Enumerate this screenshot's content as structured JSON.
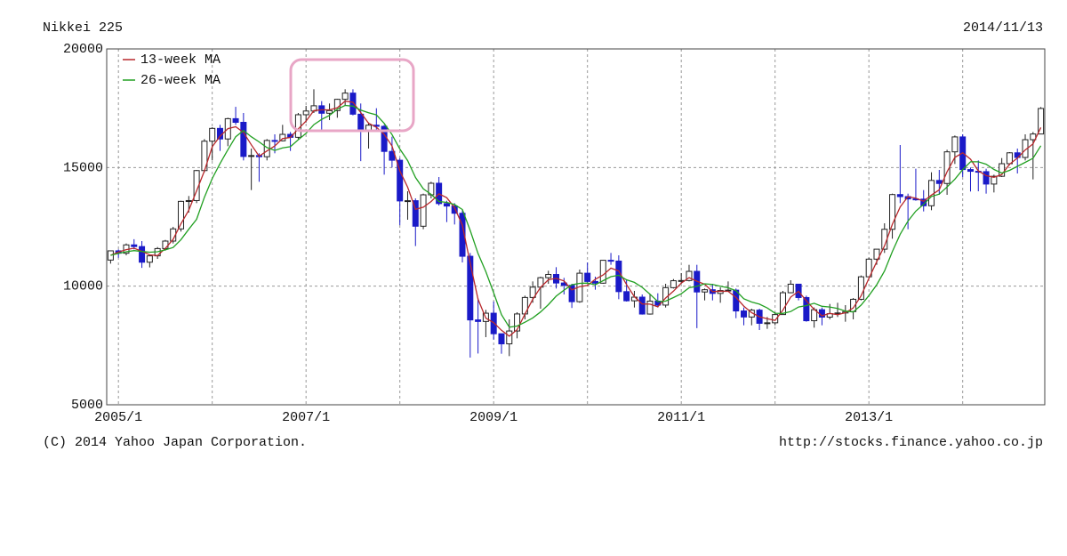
{
  "chart_data": {
    "type": "candlestick",
    "title": "Nikkei 225",
    "date": "2014/11/13",
    "copyright": "(C) 2014 Yahoo Japan Corporation.",
    "source": "http://stocks.finance.yahoo.co.jp",
    "up_color": "#ffffff",
    "down_color": "#1a1ac8",
    "ylim": [
      5000,
      20000
    ],
    "yticks": [
      5000,
      10000,
      15000,
      20000
    ],
    "grid": true,
    "legend": "top-left",
    "categories": [
      null,
      "2005/1",
      null,
      null,
      null,
      null,
      null,
      null,
      null,
      null,
      null,
      null,
      null,
      null,
      null,
      null,
      null,
      null,
      null,
      null,
      null,
      null,
      null,
      null,
      null,
      "2007/1",
      null,
      null,
      null,
      null,
      null,
      null,
      null,
      null,
      null,
      null,
      null,
      null,
      null,
      null,
      null,
      null,
      null,
      null,
      null,
      null,
      null,
      null,
      null,
      "2009/1",
      null,
      null,
      null,
      null,
      null,
      null,
      null,
      null,
      null,
      null,
      null,
      null,
      null,
      null,
      null,
      null,
      null,
      null,
      null,
      null,
      null,
      null,
      null,
      "2011/1",
      null,
      null,
      null,
      null,
      null,
      null,
      null,
      null,
      null,
      null,
      null,
      null,
      null,
      null,
      null,
      null,
      null,
      null,
      null,
      null,
      null,
      null,
      null,
      "2013/1",
      null,
      null,
      null,
      null,
      null,
      null,
      null,
      null,
      null,
      null,
      null,
      null,
      null,
      null,
      null,
      null,
      null,
      null,
      null,
      null,
      null,
      null
    ],
    "ohlc": [
      [
        11100,
        11500,
        10950,
        11489
      ],
      [
        11489,
        11550,
        11200,
        11388
      ],
      [
        11388,
        11800,
        11300,
        11740
      ],
      [
        11740,
        11980,
        11550,
        11669
      ],
      [
        11669,
        11900,
        10770,
        11009
      ],
      [
        11009,
        11300,
        10790,
        11277
      ],
      [
        11277,
        11650,
        11150,
        11584
      ],
      [
        11584,
        11950,
        11500,
        11900
      ],
      [
        11900,
        12500,
        11800,
        12414
      ],
      [
        12414,
        13600,
        12300,
        13574
      ],
      [
        13574,
        13800,
        13100,
        13607
      ],
      [
        13607,
        14900,
        13500,
        14872
      ],
      [
        14872,
        16200,
        14800,
        16111
      ],
      [
        16111,
        16700,
        15300,
        16650
      ],
      [
        16650,
        16800,
        15700,
        16205
      ],
      [
        16205,
        17100,
        15900,
        17060
      ],
      [
        17060,
        17560,
        16800,
        16906
      ],
      [
        16906,
        17300,
        15300,
        15467
      ],
      [
        15467,
        15800,
        14050,
        15505
      ],
      [
        15505,
        15600,
        14400,
        15457
      ],
      [
        15457,
        16200,
        15300,
        16141
      ],
      [
        16141,
        16400,
        15600,
        16127
      ],
      [
        16127,
        16800,
        16100,
        16399
      ],
      [
        16399,
        16500,
        15700,
        16274
      ],
      [
        16274,
        17300,
        16200,
        17226
      ],
      [
        17226,
        17600,
        16900,
        17383
      ],
      [
        17383,
        18300,
        17300,
        17604
      ],
      [
        17604,
        17800,
        16600,
        17288
      ],
      [
        17288,
        17700,
        17000,
        17400
      ],
      [
        17400,
        17900,
        17100,
        17876
      ],
      [
        17876,
        18300,
        17600,
        18138
      ],
      [
        18138,
        18300,
        17200,
        17249
      ],
      [
        17249,
        17700,
        15270,
        16569
      ],
      [
        16569,
        16900,
        15800,
        16786
      ],
      [
        16786,
        17500,
        16500,
        16737
      ],
      [
        16737,
        16800,
        14700,
        15680
      ],
      [
        15680,
        16300,
        15000,
        15308
      ],
      [
        15308,
        15400,
        12570,
        13592
      ],
      [
        13592,
        14000,
        12800,
        13603
      ],
      [
        13603,
        13700,
        11690,
        12526
      ],
      [
        12526,
        13900,
        12400,
        13850
      ],
      [
        13850,
        14400,
        13700,
        14338
      ],
      [
        14338,
        14600,
        13400,
        13481
      ],
      [
        13481,
        13600,
        12700,
        13377
      ],
      [
        13377,
        13500,
        12600,
        13073
      ],
      [
        13073,
        13200,
        11000,
        11260
      ],
      [
        11260,
        11400,
        6990,
        8577
      ],
      [
        8577,
        9500,
        7160,
        8512
      ],
      [
        8512,
        9000,
        7850,
        8860
      ],
      [
        8860,
        9350,
        7750,
        7994
      ],
      [
        7994,
        8000,
        7150,
        7568
      ],
      [
        7568,
        8600,
        7050,
        8110
      ],
      [
        8110,
        8900,
        7800,
        8828
      ],
      [
        8828,
        9600,
        8600,
        9523
      ],
      [
        9523,
        10200,
        9300,
        9958
      ],
      [
        9958,
        10400,
        9050,
        10357
      ],
      [
        10357,
        10650,
        10100,
        10493
      ],
      [
        10493,
        10800,
        9900,
        10133
      ],
      [
        10133,
        10350,
        9650,
        10034
      ],
      [
        10034,
        10100,
        9080,
        9345
      ],
      [
        9345,
        10700,
        9300,
        10546
      ],
      [
        10546,
        11000,
        10100,
        10198
      ],
      [
        10198,
        10400,
        9850,
        10126
      ],
      [
        10126,
        11100,
        10100,
        11090
      ],
      [
        11090,
        11400,
        10900,
        11057
      ],
      [
        11057,
        11300,
        9450,
        9769
      ],
      [
        9769,
        10250,
        9350,
        9383
      ],
      [
        9383,
        9800,
        9100,
        9537
      ],
      [
        9537,
        9650,
        8800,
        8824
      ],
      [
        8824,
        9650,
        8800,
        9369
      ],
      [
        9369,
        9700,
        9100,
        9202
      ],
      [
        9202,
        10100,
        9100,
        9937
      ],
      [
        9937,
        10300,
        9900,
        10229
      ],
      [
        10229,
        10550,
        10100,
        10237
      ],
      [
        10237,
        10900,
        10200,
        10624
      ],
      [
        10624,
        10900,
        8230,
        9755
      ],
      [
        9755,
        9900,
        9400,
        9850
      ],
      [
        9850,
        10100,
        9400,
        9694
      ],
      [
        9694,
        9950,
        9300,
        9816
      ],
      [
        9816,
        10200,
        9800,
        9833
      ],
      [
        9833,
        9900,
        8650,
        8955
      ],
      [
        8955,
        9100,
        8350,
        8700
      ],
      [
        8700,
        9050,
        8350,
        8988
      ],
      [
        8988,
        9050,
        8150,
        8434
      ],
      [
        8434,
        8700,
        8200,
        8455
      ],
      [
        8455,
        8900,
        8350,
        8802
      ],
      [
        8802,
        9800,
        8800,
        9723
      ],
      [
        9723,
        10250,
        9700,
        10083
      ],
      [
        10083,
        10100,
        9400,
        9520
      ],
      [
        9520,
        9600,
        8500,
        8543
      ],
      [
        8543,
        9100,
        8250,
        9007
      ],
      [
        9007,
        9100,
        8350,
        8695
      ],
      [
        8695,
        9250,
        8600,
        8840
      ],
      [
        8840,
        9300,
        8700,
        8870
      ],
      [
        8870,
        9200,
        8500,
        8928
      ],
      [
        8928,
        9500,
        8600,
        9446
      ],
      [
        9446,
        10450,
        9400,
        10395
      ],
      [
        10395,
        11200,
        10400,
        11139
      ],
      [
        11139,
        11500,
        10900,
        11559
      ],
      [
        11559,
        12650,
        11400,
        12397
      ],
      [
        12397,
        13900,
        12000,
        13861
      ],
      [
        13861,
        15950,
        13500,
        13775
      ],
      [
        13775,
        13900,
        12400,
        13677
      ],
      [
        13677,
        14950,
        13600,
        13668
      ],
      [
        13668,
        14050,
        13150,
        13389
      ],
      [
        13389,
        14800,
        13200,
        14456
      ],
      [
        14456,
        14900,
        13850,
        14328
      ],
      [
        14328,
        15750,
        13850,
        15662
      ],
      [
        15662,
        16350,
        15150,
        16291
      ],
      [
        16291,
        16400,
        14600,
        14915
      ],
      [
        14915,
        15000,
        13990,
        14841
      ],
      [
        14841,
        15300,
        14000,
        14828
      ],
      [
        14828,
        14950,
        13900,
        14304
      ],
      [
        14304,
        14700,
        13950,
        14632
      ],
      [
        14632,
        15400,
        14600,
        15162
      ],
      [
        15162,
        15650,
        15100,
        15621
      ],
      [
        15621,
        15800,
        14750,
        15425
      ],
      [
        15425,
        16400,
        15300,
        16174
      ],
      [
        16174,
        16500,
        14500,
        16414
      ],
      [
        16414,
        17550,
        16400,
        17490
      ]
    ],
    "series": [
      {
        "name": "13-week MA",
        "color": "#b8282c",
        "values": [
          11300,
          11440,
          11540,
          11600,
          11470,
          11320,
          11290,
          11590,
          11970,
          12630,
          13200,
          14020,
          14860,
          15880,
          16320,
          16640,
          16720,
          16480,
          15960,
          15480,
          15700,
          15910,
          16220,
          16270,
          16630,
          16960,
          17400,
          17430,
          17430,
          17520,
          17800,
          17750,
          17320,
          16870,
          16700,
          16400,
          15910,
          14860,
          14170,
          13240,
          13330,
          13570,
          13890,
          13730,
          13310,
          12570,
          10970,
          9450,
          8650,
          8460,
          8140,
          7890,
          8170,
          8820,
          9440,
          9950,
          10270,
          10330,
          10220,
          9840,
          9980,
          10030,
          10290,
          10470,
          10760,
          10640,
          10070,
          9560,
          9250,
          9240,
          9130,
          9500,
          9790,
          10130,
          10360,
          10210,
          10080,
          9770,
          9790,
          9780,
          9530,
          9160,
          8880,
          8710,
          8630,
          8560,
          8990,
          9540,
          9780,
          9380,
          9020,
          8750,
          8850,
          8800,
          8880,
          9080,
          9590,
          10330,
          11030,
          11700,
          12610,
          13340,
          13770,
          13710,
          13580,
          13840,
          14060,
          14820,
          15430,
          15620,
          15350,
          14860,
          14660,
          14590,
          14700,
          15140,
          15400,
          15740,
          16000,
          16690
        ]
      },
      {
        "name": "26-week MA",
        "color": "#22a022",
        "values": [
          11300,
          11380,
          11450,
          11500,
          11460,
          11430,
          11450,
          11530,
          11630,
          11960,
          12400,
          12820,
          13750,
          14540,
          15170,
          15750,
          16300,
          16560,
          16300,
          16080,
          15840,
          15720,
          15830,
          15880,
          16170,
          16440,
          16810,
          17030,
          17200,
          17460,
          17620,
          17590,
          17420,
          17310,
          17220,
          16860,
          16390,
          15780,
          15290,
          14580,
          14100,
          13870,
          13570,
          13530,
          13440,
          13230,
          12350,
          11380,
          10610,
          9720,
          8800,
          8270,
          8320,
          8480,
          8660,
          8910,
          9220,
          9580,
          9830,
          10060,
          10120,
          10130,
          10060,
          10230,
          10400,
          10460,
          10270,
          10160,
          9950,
          9660,
          9350,
          9370,
          9520,
          9680,
          9930,
          10000,
          10100,
          10070,
          10000,
          9930,
          9810,
          9470,
          9330,
          9240,
          9080,
          8860,
          8850,
          8930,
          9120,
          9180,
          9280,
          9150,
          9120,
          9060,
          8950,
          8910,
          9200,
          9600,
          10060,
          10640,
          11460,
          12190,
          12740,
          13160,
          13450,
          13780,
          13880,
          14180,
          14510,
          14910,
          15240,
          15240,
          15140,
          14920,
          14770,
          14880,
          15050,
          15220,
          15390,
          15920
        ]
      }
    ]
  }
}
